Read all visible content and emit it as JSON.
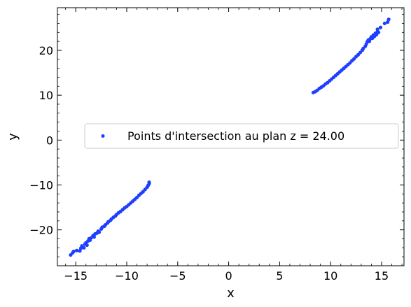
{
  "chart_data": {
    "type": "scatter",
    "title": "",
    "xlabel": "x",
    "ylabel": "y",
    "xlim": [
      -16.8,
      17.2
    ],
    "ylim": [
      -28,
      29.5
    ],
    "xticks": [
      -15,
      -10,
      -5,
      0,
      5,
      10,
      15
    ],
    "yticks": [
      -20,
      -10,
      0,
      10,
      20
    ],
    "xtick_labels": [
      "−15",
      "−10",
      "−5",
      "0",
      "5",
      "10",
      "15"
    ],
    "ytick_labels": [
      "−20",
      "−10",
      "0",
      "10",
      "20"
    ],
    "grid": false,
    "legend_position": "center-right",
    "marker_color": "#1f3fff",
    "series": [
      {
        "name": "Points d'intersection au plan z = 24.00",
        "points": [
          [
            -15.5,
            -25.6
          ],
          [
            -15.3,
            -25.1
          ],
          [
            -15.2,
            -24.8
          ],
          [
            -14.9,
            -24.6
          ],
          [
            -14.6,
            -24.7
          ],
          [
            -14.5,
            -24.1
          ],
          [
            -14.4,
            -23.6
          ],
          [
            -14.2,
            -24.0
          ],
          [
            -14.1,
            -23.2
          ],
          [
            -14.0,
            -22.9
          ],
          [
            -13.9,
            -23.4
          ],
          [
            -13.8,
            -22.5
          ],
          [
            -13.7,
            -22.0
          ],
          [
            -13.6,
            -22.3
          ],
          [
            -13.5,
            -21.8
          ],
          [
            -13.3,
            -21.3
          ],
          [
            -13.2,
            -21.6
          ],
          [
            -13.1,
            -20.9
          ],
          [
            -12.9,
            -20.7
          ],
          [
            -12.8,
            -20.3
          ],
          [
            -12.7,
            -20.5
          ],
          [
            -12.5,
            -19.8
          ],
          [
            -12.4,
            -19.4
          ],
          [
            -12.2,
            -19.2
          ],
          [
            -12.1,
            -18.9
          ],
          [
            -11.9,
            -18.5
          ],
          [
            -11.8,
            -18.2
          ],
          [
            -11.6,
            -17.9
          ],
          [
            -11.5,
            -17.6
          ],
          [
            -11.3,
            -17.2
          ],
          [
            -11.1,
            -16.9
          ],
          [
            -11.0,
            -16.6
          ],
          [
            -10.8,
            -16.2
          ],
          [
            -10.6,
            -15.9
          ],
          [
            -10.4,
            -15.5
          ],
          [
            -10.2,
            -15.1
          ],
          [
            -10.0,
            -14.8
          ],
          [
            -9.8,
            -14.4
          ],
          [
            -9.6,
            -14.0
          ],
          [
            -9.4,
            -13.6
          ],
          [
            -9.2,
            -13.2
          ],
          [
            -9.0,
            -12.8
          ],
          [
            -8.8,
            -12.3
          ],
          [
            -8.6,
            -11.9
          ],
          [
            -8.4,
            -11.5
          ],
          [
            -8.2,
            -11.0
          ],
          [
            -8.0,
            -10.5
          ],
          [
            -7.9,
            -10.1
          ],
          [
            -7.8,
            -9.7
          ],
          [
            -7.8,
            -9.4
          ],
          [
            8.3,
            10.6
          ],
          [
            8.5,
            10.8
          ],
          [
            8.7,
            11.1
          ],
          [
            8.9,
            11.5
          ],
          [
            9.1,
            11.8
          ],
          [
            9.3,
            12.1
          ],
          [
            9.5,
            12.5
          ],
          [
            9.7,
            12.8
          ],
          [
            9.9,
            13.2
          ],
          [
            10.1,
            13.6
          ],
          [
            10.3,
            14.0
          ],
          [
            10.5,
            14.4
          ],
          [
            10.7,
            14.8
          ],
          [
            10.9,
            15.2
          ],
          [
            11.1,
            15.6
          ],
          [
            11.3,
            16.0
          ],
          [
            11.5,
            16.4
          ],
          [
            11.7,
            16.8
          ],
          [
            11.9,
            17.2
          ],
          [
            12.1,
            17.7
          ],
          [
            12.3,
            18.1
          ],
          [
            12.5,
            18.6
          ],
          [
            12.7,
            19.0
          ],
          [
            12.9,
            19.5
          ],
          [
            13.1,
            20.0
          ],
          [
            13.2,
            20.4
          ],
          [
            13.4,
            20.9
          ],
          [
            13.5,
            21.4
          ],
          [
            13.6,
            21.9
          ],
          [
            13.7,
            22.3
          ],
          [
            13.8,
            22.0
          ],
          [
            13.9,
            22.6
          ],
          [
            14.0,
            23.0
          ],
          [
            14.1,
            22.7
          ],
          [
            14.2,
            23.4
          ],
          [
            14.3,
            23.1
          ],
          [
            14.4,
            23.8
          ],
          [
            14.5,
            23.5
          ],
          [
            14.6,
            24.2
          ],
          [
            14.7,
            24.0
          ],
          [
            14.9,
            25.1
          ],
          [
            15.3,
            26.0
          ],
          [
            15.6,
            26.3
          ],
          [
            15.7,
            26.9
          ],
          [
            14.6,
            24.7
          ]
        ]
      }
    ]
  }
}
